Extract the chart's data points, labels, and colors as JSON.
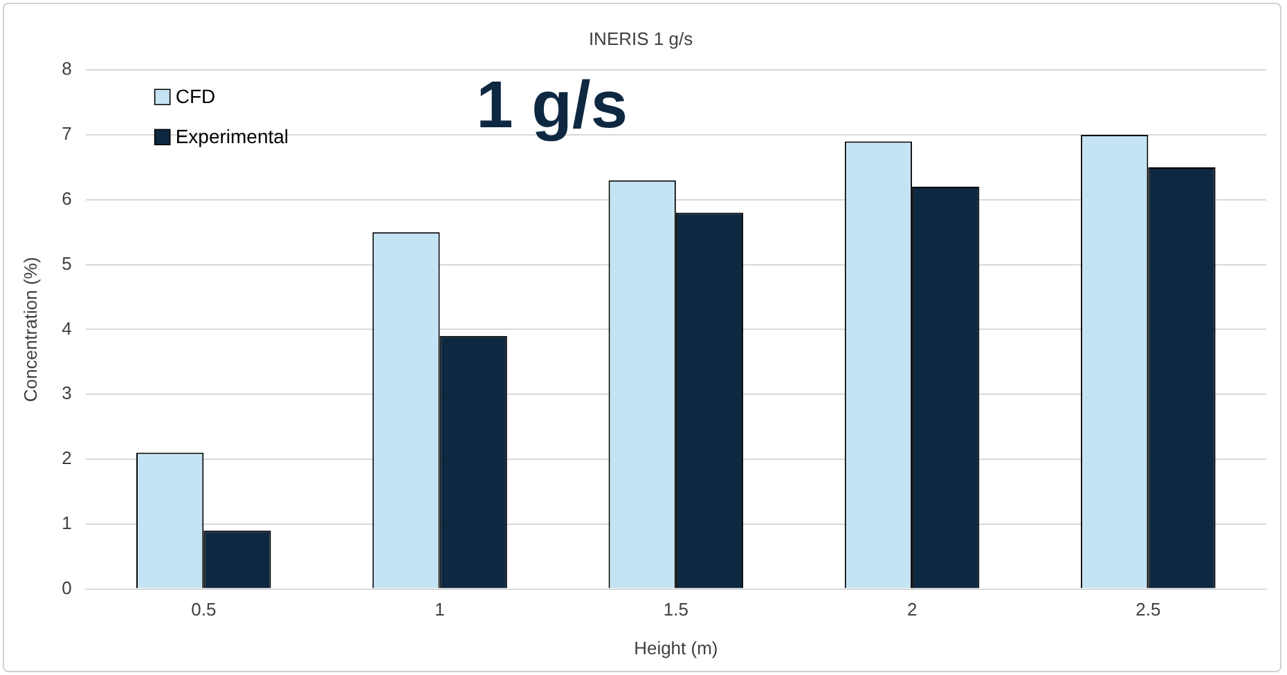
{
  "chart_data": {
    "type": "bar",
    "title": "INERIS 1 g/s",
    "xlabel": "Height (m)",
    "ylabel": "Concentration (%)",
    "categories": [
      "0.5",
      "1",
      "1.5",
      "2",
      "2.5"
    ],
    "series": [
      {
        "name": "CFD",
        "color": "#c5e4f3",
        "values": [
          2.1,
          5.5,
          6.3,
          6.9,
          7.0
        ]
      },
      {
        "name": "Experimental",
        "color": "#0e2841",
        "values": [
          0.9,
          3.9,
          5.8,
          6.2,
          6.5
        ]
      }
    ],
    "ylim": [
      0,
      8
    ],
    "yticks": [
      0,
      1,
      2,
      3,
      4,
      5,
      6,
      7,
      8
    ],
    "grid": "y",
    "legend": "top left",
    "annotations": [
      "1 g/s"
    ]
  }
}
